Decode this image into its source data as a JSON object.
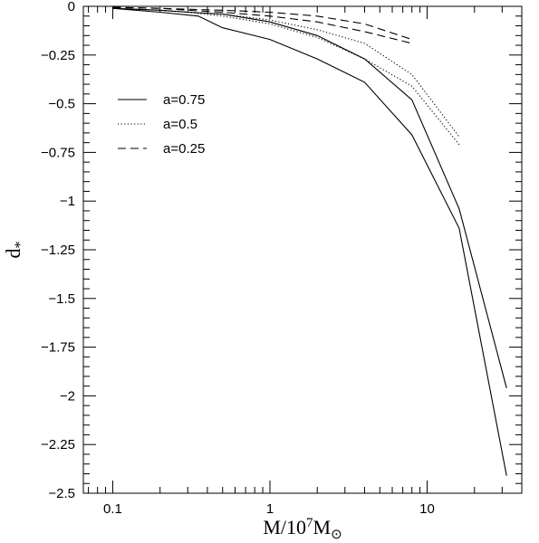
{
  "chart_data": {
    "type": "line",
    "title": "",
    "xlabel": {
      "base": "M/10",
      "exp": "7",
      "tail": "M",
      "sub": "⊙"
    },
    "ylabel": {
      "base": "d",
      "sub": "*"
    },
    "xscale": "log",
    "xlim": [
      0.065,
      40
    ],
    "ylim": [
      -2.5,
      0
    ],
    "x_ticks": [
      {
        "value": 0.1,
        "label": "0.1"
      },
      {
        "value": 1,
        "label": "1"
      },
      {
        "value": 10,
        "label": "10"
      }
    ],
    "y_ticks": [
      {
        "value": 0,
        "label": "0"
      },
      {
        "value": -0.25,
        "label": "−0.25"
      },
      {
        "value": -0.5,
        "label": "−0.5"
      },
      {
        "value": -0.75,
        "label": "−0.75"
      },
      {
        "value": -1,
        "label": "−1"
      },
      {
        "value": -1.25,
        "label": "−1.25"
      },
      {
        "value": -1.5,
        "label": "−1.5"
      },
      {
        "value": -1.75,
        "label": "−1.75"
      },
      {
        "value": -2,
        "label": "−2"
      },
      {
        "value": -2.25,
        "label": "−2.25"
      },
      {
        "value": -2.5,
        "label": "−2.5"
      }
    ],
    "grid": false,
    "legend_position": "upper-left",
    "legend": [
      {
        "label": "a=0.75",
        "style": "solid"
      },
      {
        "label": "a=0.5",
        "style": "dotted"
      },
      {
        "label": "a=0.25",
        "style": "dashed"
      }
    ],
    "series": [
      {
        "style": "solid",
        "x": [
          0.1,
          0.2,
          0.3,
          0.5,
          1,
          2,
          4,
          8,
          16,
          32
        ],
        "y": [
          -0.01,
          -0.02,
          -0.03,
          -0.04,
          -0.08,
          -0.15,
          -0.27,
          -0.48,
          -1.04,
          -1.96
        ]
      },
      {
        "style": "solid",
        "x": [
          0.1,
          0.2,
          0.35,
          0.5,
          1,
          2,
          4,
          8,
          16,
          32
        ],
        "y": [
          -0.01,
          -0.03,
          -0.05,
          -0.11,
          -0.17,
          -0.27,
          -0.39,
          -0.66,
          -1.14,
          -2.41
        ]
      },
      {
        "style": "dotted",
        "x": [
          0.1,
          0.2,
          0.3,
          0.5,
          1,
          2,
          4,
          8,
          16
        ],
        "y": [
          -0.01,
          -0.02,
          -0.03,
          -0.04,
          -0.07,
          -0.12,
          -0.19,
          -0.35,
          -0.67
        ]
      },
      {
        "style": "dotted",
        "x": [
          0.1,
          0.2,
          0.3,
          0.5,
          1,
          2,
          4,
          8,
          16
        ],
        "y": [
          -0.01,
          -0.02,
          -0.03,
          -0.05,
          -0.09,
          -0.16,
          -0.27,
          -0.41,
          -0.71
        ]
      },
      {
        "style": "dashed",
        "x": [
          0.1,
          0.2,
          0.3,
          0.5,
          1,
          2,
          4,
          8
        ],
        "y": [
          -0.005,
          -0.01,
          -0.015,
          -0.02,
          -0.03,
          -0.05,
          -0.09,
          -0.17
        ]
      },
      {
        "style": "dashed",
        "x": [
          0.1,
          0.2,
          0.3,
          0.5,
          1,
          2,
          4,
          8
        ],
        "y": [
          -0.005,
          -0.01,
          -0.02,
          -0.03,
          -0.05,
          -0.08,
          -0.13,
          -0.19
        ]
      }
    ]
  }
}
